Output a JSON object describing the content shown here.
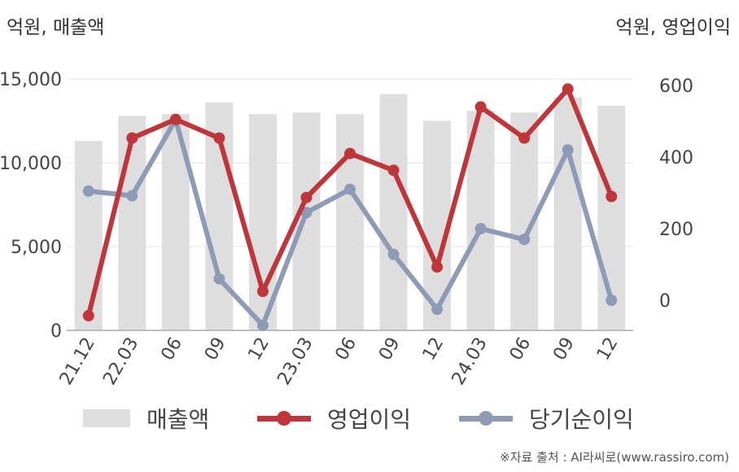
{
  "chart_data": {
    "type": "bar+line",
    "left_unit_label": "억원, 매출액",
    "right_unit_label": "억원, 영업이익",
    "categories": [
      "21.12",
      "22.03",
      "06",
      "09",
      "12",
      "23.03",
      "06",
      "09",
      "12",
      "24.03",
      "06",
      "09",
      "12"
    ],
    "bar_series": {
      "name": "매출액",
      "axis": "left",
      "color": "#dedede",
      "values": [
        11300,
        12800,
        12900,
        13600,
        12900,
        13000,
        12900,
        14100,
        12500,
        13100,
        13000,
        13900,
        13400
      ]
    },
    "line_series": [
      {
        "name": "영업이익",
        "axis": "right",
        "color": "#c0353a",
        "values": [
          -43,
          453,
          505,
          453,
          25,
          287,
          410,
          363,
          93,
          540,
          453,
          590,
          290
        ]
      },
      {
        "name": "당기순이익",
        "axis": "right",
        "color": "#8e9bb7",
        "values": [
          305,
          292,
          505,
          60,
          -70,
          245,
          310,
          128,
          -25,
          200,
          170,
          420,
          0
        ]
      }
    ],
    "left_axis": {
      "ylim": [
        0,
        15000
      ],
      "ticks": [
        0,
        5000,
        10000,
        15000
      ],
      "tick_labels": [
        "0",
        "5,000",
        "10,000",
        "15,000"
      ]
    },
    "right_axis": {
      "ylim": [
        -88,
        620
      ],
      "ticks": [
        0,
        200,
        400,
        600
      ],
      "tick_labels": [
        "0",
        "200",
        "400",
        "600"
      ]
    },
    "grid": true,
    "legend_position": "bottom"
  },
  "legend": {
    "bar_label": "매출액",
    "line1_label": "영업이익",
    "line2_label": "당기순이익"
  },
  "source": "※자료 출처 : AI라씨로(www.rassiro.com)"
}
